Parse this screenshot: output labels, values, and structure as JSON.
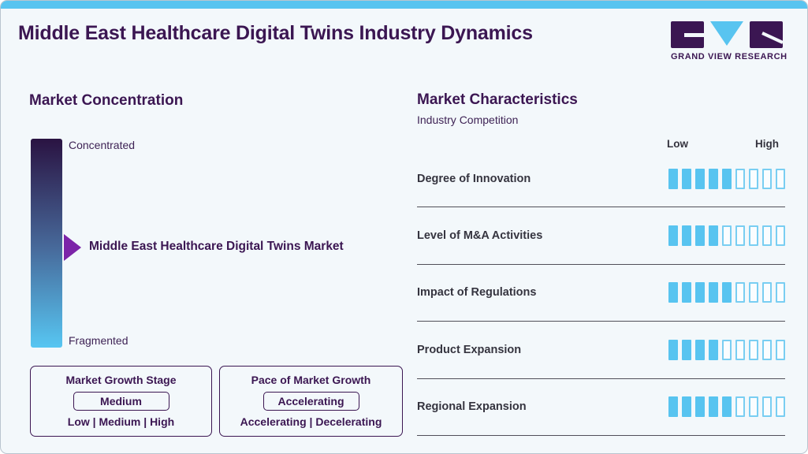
{
  "header": {
    "title": "Middle East Healthcare Digital Twins Industry Dynamics"
  },
  "logo": {
    "wordmark": "GRAND VIEW RESEARCH"
  },
  "concentration": {
    "heading": "Market Concentration",
    "scale_top": "Concentrated",
    "scale_bottom": "Fragmented",
    "marker_label": "Middle East Healthcare Digital Twins Market"
  },
  "boxes": {
    "growth": {
      "title": "Market Growth Stage",
      "selected": "Medium",
      "options": "Low | Medium | High"
    },
    "pace": {
      "title": "Pace of Market Growth",
      "selected": "Accelerating",
      "options": "Accelerating | Decelerating"
    }
  },
  "characteristics": {
    "heading": "Market Characteristics",
    "subheading": "Industry Competition",
    "scale_low": "Low",
    "scale_high": "High"
  },
  "chart_data": {
    "type": "bar",
    "title": "Market Characteristics",
    "subtitle": "Industry Competition",
    "categories": [
      "Degree of Innovation",
      "Level of M&A Activities",
      "Impact of Regulations",
      "Product Expansion",
      "Regional Expansion"
    ],
    "values": [
      5,
      4,
      5,
      4,
      5
    ],
    "value_range": [
      0,
      9
    ],
    "scale_labels": [
      "Low",
      "High"
    ],
    "legend_position": "none",
    "annotations": {
      "market_concentration_axis": [
        "Concentrated",
        "Fragmented"
      ],
      "market_concentration_marker": "Middle East Healthcare Digital Twins Market",
      "market_growth_stage": "Medium",
      "pace_of_market_growth": "Accelerating"
    }
  },
  "colors": {
    "accent_blue": "#58c4f0",
    "dark_purple": "#3b1652",
    "arrow_purple": "#7c24a8",
    "row_label": "#35343f",
    "gradient_top": "#2a1342",
    "gradient_bottom": "#57c6f2",
    "separator": "#504f59"
  }
}
